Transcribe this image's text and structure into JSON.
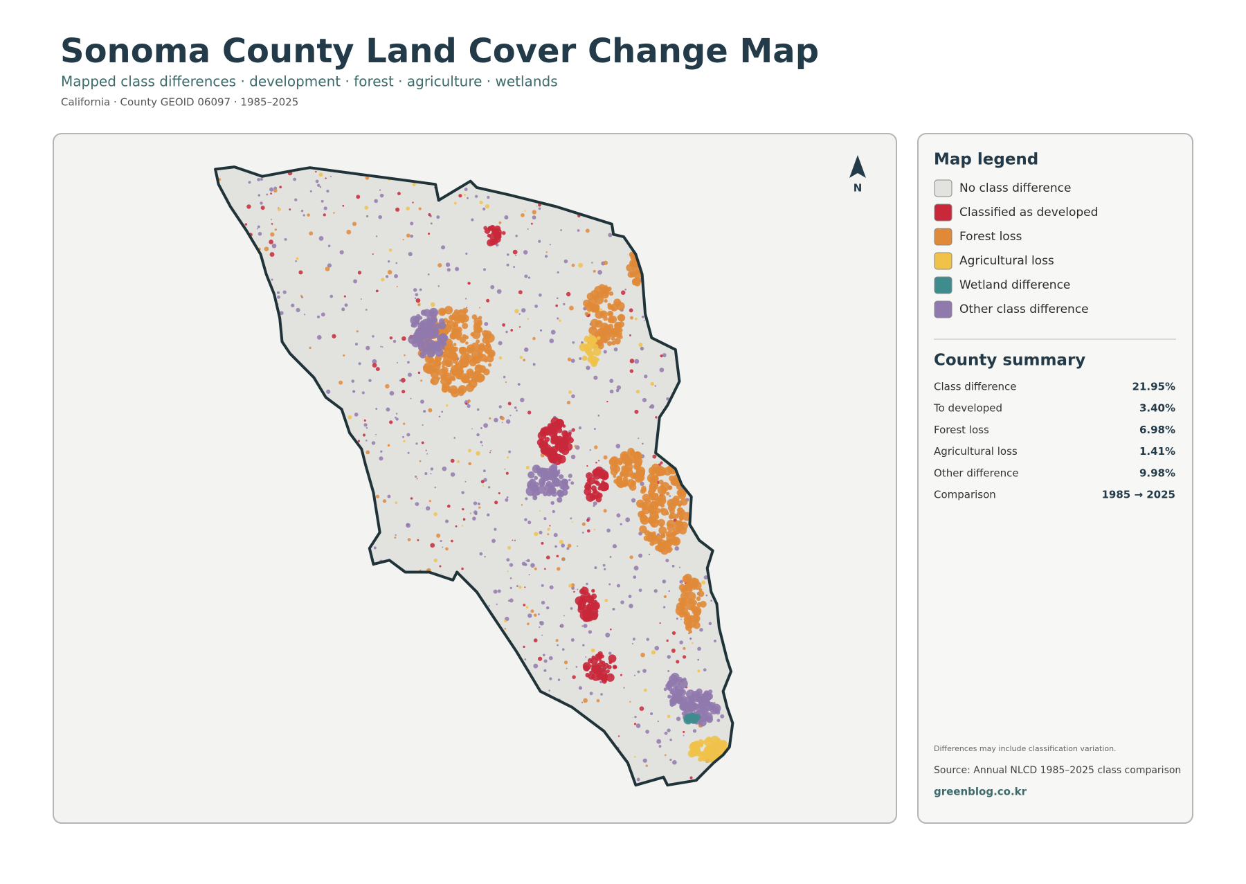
{
  "header": {
    "title": "Sonoma County Land Cover Change Map",
    "subtitle": "Mapped class differences · development · forest · agriculture · wetlands",
    "meta": "California · County GEOID 06097 · 1985–2025"
  },
  "map": {
    "north_label": "N"
  },
  "legend": {
    "title": "Map legend",
    "items": [
      {
        "label": "No class difference",
        "color": "#e2e2df"
      },
      {
        "label": "Classified as developed",
        "color": "#c8283a"
      },
      {
        "label": "Forest loss",
        "color": "#e08a38"
      },
      {
        "label": "Agricultural loss",
        "color": "#f0c24a"
      },
      {
        "label": "Wetland difference",
        "color": "#3f8c8f"
      },
      {
        "label": "Other class difference",
        "color": "#9079ad"
      }
    ]
  },
  "summary": {
    "title": "County summary",
    "rows": [
      {
        "label": "Class difference",
        "value": "21.95%"
      },
      {
        "label": "To developed",
        "value": "3.40%"
      },
      {
        "label": "Forest loss",
        "value": "6.98%"
      },
      {
        "label": "Agricultural loss",
        "value": "1.41%"
      },
      {
        "label": "Other difference",
        "value": "9.98%"
      },
      {
        "label": "Comparison",
        "value": "1985 → 2025"
      }
    ]
  },
  "footer": {
    "note": "Differences may include classification variation.",
    "source": "Source: Annual NLCD 1985–2025 class comparison",
    "site": "greenblog.co.kr"
  }
}
